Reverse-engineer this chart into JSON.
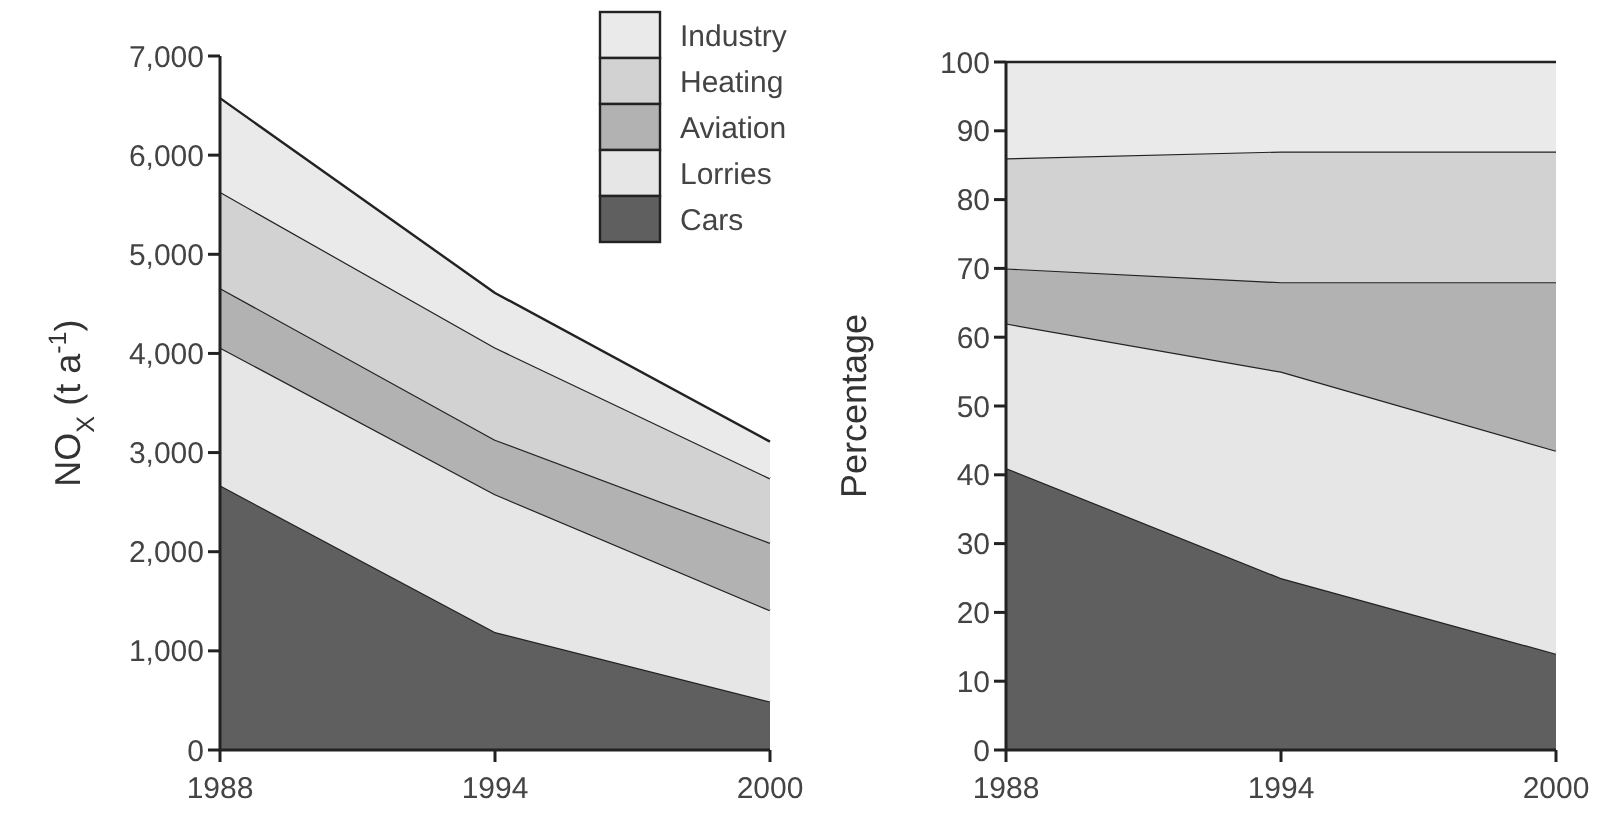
{
  "chart_data": [
    {
      "type": "area",
      "stacked": true,
      "ylabel": "NO$_{X}$ (t a$^{-1}$)",
      "x": [
        1988,
        1994,
        2000
      ],
      "xlim": [
        1988,
        2000
      ],
      "xticks": [
        1988,
        1994,
        2000
      ],
      "ylim": [
        0,
        7000
      ],
      "yticks": [
        {
          "value": 0,
          "label": "0"
        },
        {
          "value": 1000,
          "label": "1,000"
        },
        {
          "value": 2000,
          "label": "2,000"
        },
        {
          "value": 3000,
          "label": "3,000"
        },
        {
          "value": 4000,
          "label": "4,000"
        },
        {
          "value": 5000,
          "label": "5,000"
        },
        {
          "value": 6000,
          "label": "6,000"
        },
        {
          "value": 7000,
          "label": "7,000"
        }
      ],
      "legend": "top right",
      "series": [
        {
          "name": "Cars",
          "color": "#5f5f5f",
          "values": [
            2670,
            1190,
            490
          ]
        },
        {
          "name": "Lorries",
          "color": "#e6e6e6",
          "values": [
            1390,
            1390,
            920
          ]
        },
        {
          "name": "Aviation",
          "color": "#b2b2b2",
          "values": [
            600,
            550,
            680
          ]
        },
        {
          "name": "Heating",
          "color": "#d2d2d2",
          "values": [
            970,
            930,
            650
          ]
        },
        {
          "name": "Industry",
          "color": "#eaeaea",
          "values": [
            945,
            550,
            370
          ]
        }
      ]
    },
    {
      "type": "area",
      "stacked": true,
      "ylabel": "Percentage",
      "x": [
        1988,
        1994,
        2000
      ],
      "xlim": [
        1988,
        2000
      ],
      "xticks": [
        1988,
        1994,
        2000
      ],
      "ylim": [
        0,
        100
      ],
      "yticks": [
        0,
        10,
        20,
        30,
        40,
        50,
        60,
        70,
        80,
        90,
        100
      ],
      "series": [
        {
          "color": "#5f5f5f",
          "values": [
            41,
            25,
            14
          ]
        },
        {
          "color": "#e6e6e6",
          "values": [
            21,
            30,
            29.5
          ]
        },
        {
          "color": "#b2b2b2",
          "values": [
            8,
            13,
            24.5
          ]
        },
        {
          "color": "#d2d2d2",
          "values": [
            16,
            19,
            19
          ]
        },
        {
          "color": "#eaeaea",
          "values": [
            14,
            13,
            13
          ]
        }
      ]
    }
  ]
}
